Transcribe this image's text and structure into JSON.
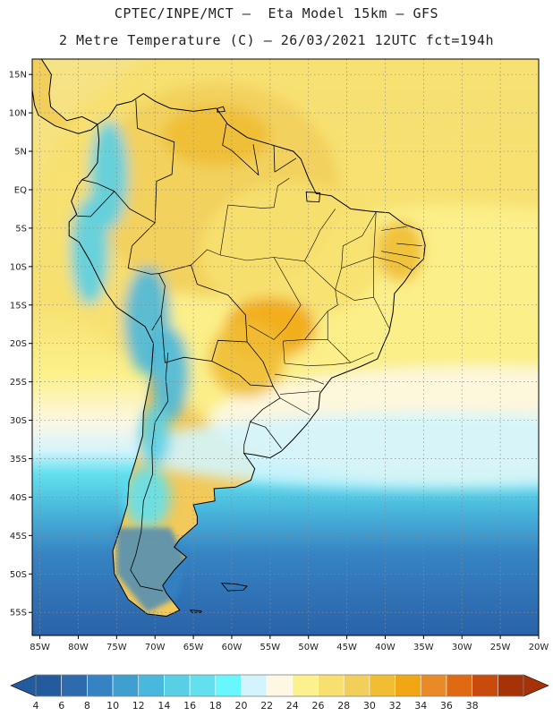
{
  "header": {
    "line1": "CPTEC/INPE/MCT –  Eta Model 15km – GFS",
    "line2": "2 Metre Temperature (C) – 26/03/2021 12UTC fct=194h"
  },
  "map": {
    "lon_min": -86,
    "lon_max": -20,
    "lat_min": -58,
    "lat_max": 17,
    "lat_ticks": [
      {
        "value": 15,
        "label": "15N"
      },
      {
        "value": 10,
        "label": "10N"
      },
      {
        "value": 5,
        "label": "5N"
      },
      {
        "value": 0,
        "label": "EQ"
      },
      {
        "value": -5,
        "label": "5S"
      },
      {
        "value": -10,
        "label": "10S"
      },
      {
        "value": -15,
        "label": "15S"
      },
      {
        "value": -20,
        "label": "20S"
      },
      {
        "value": -25,
        "label": "25S"
      },
      {
        "value": -30,
        "label": "30S"
      },
      {
        "value": -35,
        "label": "35S"
      },
      {
        "value": -40,
        "label": "40S"
      },
      {
        "value": -45,
        "label": "45S"
      },
      {
        "value": -50,
        "label": "50S"
      },
      {
        "value": -55,
        "label": "55S"
      }
    ],
    "lon_ticks": [
      {
        "value": -85,
        "label": "85W"
      },
      {
        "value": -80,
        "label": "80W"
      },
      {
        "value": -75,
        "label": "75W"
      },
      {
        "value": -70,
        "label": "70W"
      },
      {
        "value": -65,
        "label": "65W"
      },
      {
        "value": -60,
        "label": "60W"
      },
      {
        "value": -55,
        "label": "55W"
      },
      {
        "value": -50,
        "label": "50W"
      },
      {
        "value": -45,
        "label": "45W"
      },
      {
        "value": -40,
        "label": "40W"
      },
      {
        "value": -35,
        "label": "35W"
      },
      {
        "value": -30,
        "label": "30W"
      },
      {
        "value": -25,
        "label": "25W"
      },
      {
        "value": -20,
        "label": "20W"
      }
    ],
    "coastline": [
      [
        -77.5,
        8.5
      ],
      [
        -76,
        9.5
      ],
      [
        -75,
        11
      ],
      [
        -73,
        11.5
      ],
      [
        -71.5,
        12.5
      ],
      [
        -70,
        11.5
      ],
      [
        -68,
        10.6
      ],
      [
        -65,
        10.2
      ],
      [
        -62,
        10.6
      ],
      [
        -60.5,
        8.5
      ],
      [
        -58,
        6.8
      ],
      [
        -55,
        5.9
      ],
      [
        -52,
        5
      ],
      [
        -51,
        4
      ],
      [
        -50,
        1.5
      ],
      [
        -49,
        -0.5
      ],
      [
        -47,
        -0.8
      ],
      [
        -44.5,
        -2.5
      ],
      [
        -42,
        -2.8
      ],
      [
        -39.5,
        -3
      ],
      [
        -37.5,
        -4.5
      ],
      [
        -35.3,
        -5.3
      ],
      [
        -34.8,
        -7.2
      ],
      [
        -35,
        -9
      ],
      [
        -36.5,
        -10.5
      ],
      [
        -37.5,
        -12
      ],
      [
        -38.8,
        -13.5
      ],
      [
        -39,
        -16
      ],
      [
        -39.5,
        -18.5
      ],
      [
        -40.3,
        -20.3
      ],
      [
        -41,
        -22
      ],
      [
        -43.2,
        -23
      ],
      [
        -45,
        -23.7
      ],
      [
        -47,
        -24.5
      ],
      [
        -48.5,
        -26.5
      ],
      [
        -48.7,
        -28.5
      ],
      [
        -50.2,
        -30.5
      ],
      [
        -52,
        -32.5
      ],
      [
        -53.5,
        -34
      ],
      [
        -55,
        -34.9
      ],
      [
        -57,
        -34.5
      ],
      [
        -58.4,
        -34.3
      ],
      [
        -57,
        -36.3
      ],
      [
        -57.5,
        -37.8
      ],
      [
        -59.5,
        -38.7
      ],
      [
        -62.3,
        -38.9
      ],
      [
        -62.2,
        -40.5
      ],
      [
        -65,
        -41
      ],
      [
        -64.5,
        -42.5
      ],
      [
        -64.5,
        -43.5
      ],
      [
        -66.8,
        -45.5
      ],
      [
        -67.5,
        -46.5
      ],
      [
        -65.9,
        -47.8
      ],
      [
        -67.5,
        -49.5
      ],
      [
        -69,
        -51.5
      ],
      [
        -68.5,
        -52.5
      ],
      [
        -66.8,
        -54.7
      ],
      [
        -68.5,
        -55.5
      ],
      [
        -71,
        -55.2
      ],
      [
        -73.5,
        -53.3
      ],
      [
        -75.3,
        -50
      ],
      [
        -75.5,
        -47
      ],
      [
        -74.5,
        -44
      ],
      [
        -73.6,
        -41
      ],
      [
        -73.4,
        -38
      ],
      [
        -72.6,
        -35.5
      ],
      [
        -71.6,
        -32
      ],
      [
        -71.5,
        -29
      ],
      [
        -70.5,
        -24
      ],
      [
        -70.2,
        -20
      ],
      [
        -71.3,
        -17.8
      ],
      [
        -75,
        -15.3
      ],
      [
        -76.3,
        -13.5
      ],
      [
        -77.2,
        -11.8
      ],
      [
        -78.5,
        -9.2
      ],
      [
        -79.9,
        -6.8
      ],
      [
        -81.2,
        -6
      ],
      [
        -81.2,
        -4.2
      ],
      [
        -80.2,
        -3.2
      ],
      [
        -80.9,
        -1.5
      ],
      [
        -80.1,
        0.5
      ],
      [
        -79.5,
        1.3
      ],
      [
        -78.8,
        1.7
      ],
      [
        -77.5,
        3.5
      ],
      [
        -77.3,
        6.5
      ],
      [
        -77.5,
        8.5
      ]
    ],
    "central_america": [
      [
        -77.5,
        8.5
      ],
      [
        -79.5,
        9.5
      ],
      [
        -81.5,
        9
      ],
      [
        -83.6,
        10.8
      ],
      [
        -83.8,
        12.5
      ],
      [
        -83.5,
        15
      ],
      [
        -84.8,
        17
      ],
      [
        -86,
        17
      ],
      [
        -86,
        13
      ],
      [
        -85.7,
        11
      ],
      [
        -85.2,
        9.7
      ],
      [
        -83,
        8.3
      ],
      [
        -80,
        7.3
      ],
      [
        -78.3,
        7.8
      ],
      [
        -77.5,
        8.5
      ]
    ],
    "borders": [
      [
        [
          -72.5,
          11.7
        ],
        [
          -72.3,
          8
        ],
        [
          -67.5,
          6.2
        ],
        [
          -67.8,
          2
        ],
        [
          -69.8,
          1.1
        ],
        [
          -70,
          -4.3
        ],
        [
          -73.3,
          -2.5
        ],
        [
          -75.3,
          -0.2
        ],
        [
          -77.5,
          0.8
        ],
        [
          -79.5,
          1.3
        ]
      ],
      [
        [
          -60.7,
          8.6
        ],
        [
          -61.2,
          5.8
        ],
        [
          -60,
          5.1
        ],
        [
          -56.5,
          1.9
        ]
      ],
      [
        [
          -56.5,
          1.9
        ],
        [
          -57.2,
          5.9
        ]
      ],
      [
        [
          -54.4,
          2.3
        ],
        [
          -54.5,
          5.8
        ]
      ],
      [
        [
          -54.4,
          2.3
        ],
        [
          -51.6,
          4.1
        ]
      ],
      [
        [
          -80.2,
          -3.4
        ],
        [
          -78.4,
          -3.5
        ],
        [
          -75.3,
          -0.2
        ]
      ],
      [
        [
          -70,
          -4.3
        ],
        [
          -73,
          -7.3
        ],
        [
          -73.5,
          -10.2
        ],
        [
          -70.5,
          -11
        ],
        [
          -69.5,
          -10.9
        ],
        [
          -68.7,
          -12.5
        ],
        [
          -69.2,
          -16.3
        ],
        [
          -70.4,
          -18.3
        ]
      ],
      [
        [
          -69.5,
          -10.9
        ],
        [
          -65.3,
          -9.8
        ],
        [
          -64.5,
          -12.3
        ],
        [
          -60.5,
          -13.7
        ],
        [
          -58.2,
          -16.3
        ],
        [
          -58,
          -19.8
        ]
      ],
      [
        [
          -69.2,
          -16.3
        ],
        [
          -68.7,
          -22.5
        ],
        [
          -66.2,
          -21.8
        ],
        [
          -62.6,
          -22.3
        ],
        [
          -61.8,
          -19.6
        ],
        [
          -58,
          -19.8
        ]
      ],
      [
        [
          -62.6,
          -22.3
        ],
        [
          -59,
          -24.1
        ],
        [
          -57.6,
          -25.4
        ],
        [
          -54.6,
          -25.6
        ],
        [
          -55.9,
          -22.4
        ],
        [
          -58,
          -19.8
        ]
      ],
      [
        [
          -68.3,
          -21.2
        ],
        [
          -68.6,
          -24.5
        ],
        [
          -68.3,
          -27.5
        ],
        [
          -70,
          -30.3
        ],
        [
          -70.4,
          -33.5
        ],
        [
          -70.3,
          -37
        ],
        [
          -71.5,
          -40.5
        ],
        [
          -71.8,
          -44.5
        ],
        [
          -72.5,
          -47.5
        ],
        [
          -73.2,
          -49.5
        ],
        [
          -71.9,
          -51.6
        ],
        [
          -69,
          -52.2
        ]
      ],
      [
        [
          -54.6,
          -25.6
        ],
        [
          -53.7,
          -27.1
        ],
        [
          -56,
          -28.6
        ],
        [
          -57.6,
          -30.2
        ],
        [
          -55.6,
          -30.9
        ],
        [
          -53.5,
          -33.7
        ]
      ],
      [
        [
          -57.6,
          -30.2
        ],
        [
          -58.4,
          -33.2
        ],
        [
          -58.4,
          -34.3
        ]
      ]
    ],
    "states": [
      [
        [
          -60.5,
          -2
        ],
        [
          -56,
          -2.4
        ],
        [
          -54.5,
          -2.3
        ],
        [
          -54,
          0.5
        ],
        [
          -52.5,
          1.5
        ]
      ],
      [
        [
          -60.5,
          -2
        ],
        [
          -61.5,
          -8.5
        ],
        [
          -63.2,
          -7.8
        ],
        [
          -65.3,
          -9.8
        ]
      ],
      [
        [
          -61.5,
          -8.5
        ],
        [
          -58,
          -9.2
        ],
        [
          -54.5,
          -8.8
        ],
        [
          -50.5,
          -9.3
        ],
        [
          -49,
          -6.4
        ],
        [
          -48.5,
          -5.3
        ],
        [
          -46.5,
          -2.5
        ]
      ],
      [
        [
          -54.5,
          -8.8
        ],
        [
          -51,
          -15
        ],
        [
          -53,
          -18
        ],
        [
          -54.5,
          -19.5
        ],
        [
          -57.8,
          -17.6
        ]
      ],
      [
        [
          -50.5,
          -9.3
        ],
        [
          -46.5,
          -13
        ],
        [
          -46.2,
          -15
        ],
        [
          -47.5,
          -15.8
        ],
        [
          -50.5,
          -19.5
        ],
        [
          -53.3,
          -19.7
        ]
      ],
      [
        [
          -46.5,
          -13
        ],
        [
          -45.7,
          -10.2
        ],
        [
          -45.5,
          -7.3
        ],
        [
          -43,
          -6
        ],
        [
          -41.2,
          -2.9
        ]
      ],
      [
        [
          -41.2,
          -2.9
        ],
        [
          -41.5,
          -8.7
        ],
        [
          -45.7,
          -10.2
        ]
      ],
      [
        [
          -41.5,
          -8.7
        ],
        [
          -38.3,
          -9.5
        ],
        [
          -36.4,
          -10.5
        ]
      ],
      [
        [
          -41.5,
          -8.7
        ],
        [
          -41.5,
          -14
        ],
        [
          -39.5,
          -18
        ]
      ],
      [
        [
          -46.5,
          -13
        ],
        [
          -44,
          -14.4
        ],
        [
          -41.5,
          -14
        ]
      ],
      [
        [
          -47.5,
          -15.8
        ],
        [
          -47.5,
          -19.5
        ],
        [
          -50.5,
          -19.5
        ]
      ],
      [
        [
          -47.5,
          -19.5
        ],
        [
          -44.5,
          -22.5
        ],
        [
          -41.5,
          -21.2
        ]
      ],
      [
        [
          -53.3,
          -19.7
        ],
        [
          -53.1,
          -22.6
        ],
        [
          -50,
          -22.9
        ],
        [
          -47,
          -22.8
        ],
        [
          -44.5,
          -22.5
        ]
      ],
      [
        [
          -54.4,
          -24
        ],
        [
          -49.5,
          -24.7
        ],
        [
          -48,
          -25.3
        ]
      ],
      [
        [
          -53.7,
          -26.6
        ],
        [
          -48.5,
          -26.2
        ]
      ],
      [
        [
          -53.7,
          -27.1
        ],
        [
          -49.8,
          -29.3
        ]
      ],
      [
        [
          -40.5,
          -5.3
        ],
        [
          -37.2,
          -4.8
        ]
      ],
      [
        [
          -38.5,
          -7
        ],
        [
          -35.2,
          -7.3
        ]
      ],
      [
        [
          -40.5,
          -8
        ],
        [
          -35.5,
          -8.9
        ]
      ]
    ],
    "islands": [
      [
        [
          -61.9,
          10.1
        ],
        [
          -60.9,
          10.2
        ],
        [
          -61.1,
          10.8
        ],
        [
          -61.8,
          10.6
        ],
        [
          -61.9,
          10.1
        ]
      ],
      [
        [
          -50.3,
          -0.3
        ],
        [
          -48.5,
          -0.4
        ],
        [
          -48.6,
          -1.6
        ],
        [
          -50.2,
          -1.5
        ],
        [
          -50.3,
          -0.3
        ]
      ],
      [
        [
          -61.3,
          -51.2
        ],
        [
          -59.5,
          -51.3
        ],
        [
          -58,
          -51.6
        ],
        [
          -58.5,
          -52.1
        ],
        [
          -60.5,
          -52.2
        ],
        [
          -61.3,
          -51.2
        ]
      ],
      [
        [
          -65.4,
          -54.7
        ],
        [
          -64,
          -54.8
        ],
        [
          -63.9,
          -55
        ],
        [
          -65.2,
          -55
        ],
        [
          -65.4,
          -54.7
        ]
      ]
    ],
    "fields": [
      {
        "lon": -25,
        "lat": -3,
        "rx": 60,
        "ry": 32,
        "temp": 26
      },
      {
        "lon": -30,
        "lat": -20,
        "rx": 40,
        "ry": 18,
        "temp": 24
      },
      {
        "lon": -28,
        "lat": -30,
        "rx": 35,
        "ry": 7,
        "temp": 22
      },
      {
        "lon": -33,
        "lat": -34,
        "rx": 40,
        "ry": 5,
        "temp": 20
      },
      {
        "lon": -70,
        "lat": 6,
        "rx": 12,
        "ry": 8,
        "temp": 26
      },
      {
        "lon": -62,
        "lat": 0,
        "rx": 16,
        "ry": 14,
        "temp": 28
      },
      {
        "lon": -52,
        "lat": -8,
        "rx": 12,
        "ry": 9,
        "temp": 26
      },
      {
        "lon": -55,
        "lat": -18,
        "rx": 6,
        "ry": 4,
        "temp": 32
      },
      {
        "lon": -58,
        "lat": -22,
        "rx": 5,
        "ry": 5,
        "temp": 30
      },
      {
        "lon": -62,
        "lat": 7,
        "rx": 7,
        "ry": 4,
        "temp": 30
      },
      {
        "lon": -38,
        "lat": -8,
        "rx": 3,
        "ry": 4,
        "temp": 30
      },
      {
        "lon": -76,
        "lat": 2,
        "rx": 2.5,
        "ry": 7,
        "temp": 14
      },
      {
        "lon": -78.5,
        "lat": -8,
        "rx": 2.5,
        "ry": 7,
        "temp": 14
      },
      {
        "lon": -71,
        "lat": -17,
        "rx": 3,
        "ry": 7,
        "temp": 12
      },
      {
        "lon": -68,
        "lat": -24,
        "rx": 2.5,
        "ry": 6,
        "temp": 12
      },
      {
        "lon": -70,
        "lat": -32,
        "rx": 2,
        "ry": 4,
        "temp": 14
      },
      {
        "lon": -71,
        "lat": -40,
        "rx": 3,
        "ry": 4,
        "temp": 16
      }
    ],
    "color_stops": [
      {
        "temp": 6,
        "color": "#2d6bae"
      },
      {
        "temp": 8,
        "color": "#3683c3"
      },
      {
        "temp": 10,
        "color": "#3fa0d0"
      },
      {
        "temp": 12,
        "color": "#4ab8dc"
      },
      {
        "temp": 14,
        "color": "#59cfe5"
      },
      {
        "temp": 16,
        "color": "#62e0ee"
      },
      {
        "temp": 18,
        "color": "#67f7fc"
      },
      {
        "temp": 20,
        "color": "#d3f4fc"
      },
      {
        "temp": 22,
        "color": "#fdf7e4"
      },
      {
        "temp": 24,
        "color": "#fcf18c"
      },
      {
        "temp": 26,
        "color": "#f7e070"
      },
      {
        "temp": 28,
        "color": "#f2cf5b"
      },
      {
        "temp": 30,
        "color": "#f0bd33"
      },
      {
        "temp": 32,
        "color": "#f1a713"
      },
      {
        "temp": 34,
        "color": "#e98a27"
      }
    ]
  },
  "colorbar": {
    "labels": [
      "4",
      "6",
      "8",
      "10",
      "12",
      "14",
      "16",
      "18",
      "20",
      "22",
      "24",
      "26",
      "28",
      "30",
      "32",
      "34",
      "36",
      "38"
    ],
    "colors": [
      "#245a9e",
      "#2d6bae",
      "#3683c3",
      "#3fa0d0",
      "#4ab8dc",
      "#59cfe5",
      "#62e0ee",
      "#67f7fc",
      "#d3f4fc",
      "#fdf7e4",
      "#fcf18c",
      "#f7e070",
      "#f2cf5b",
      "#f0bd33",
      "#f1a713",
      "#e98a27",
      "#df6a12",
      "#c84a0c",
      "#a63208"
    ],
    "low_arrow_color": "#245a9e",
    "high_arrow_color": "#a63208"
  },
  "styles": {
    "ocean_south": "#2a62a8",
    "ocean_north": "#f6e387",
    "land_base": "#f2c95a",
    "frame_color": "#000000",
    "grid_color": "#8a8a8a"
  }
}
